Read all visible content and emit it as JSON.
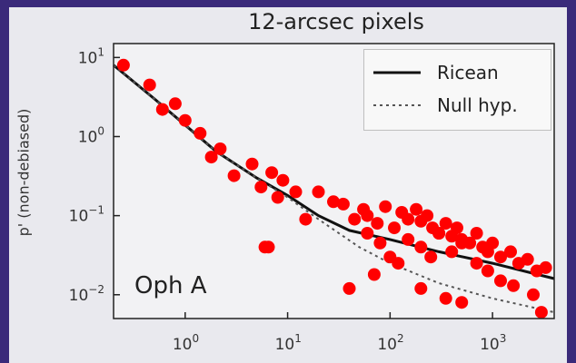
{
  "chart_data": {
    "type": "scatter",
    "title": "12-arcsec pixels",
    "ylabel": "p' (non-debiased)",
    "xscale": "log",
    "yscale": "log",
    "xlim": [
      0.2,
      4000
    ],
    "ylim": [
      0.005,
      15
    ],
    "x_ticks": [
      1,
      10,
      100,
      1000
    ],
    "x_tick_labels": [
      "10^0",
      "10^1",
      "10^2",
      "10^3"
    ],
    "y_ticks": [
      0.01,
      0.1,
      1,
      10
    ],
    "y_tick_labels": [
      "10^-2",
      "10^-1",
      "10^0",
      "10^1"
    ],
    "annotation": "Oph A",
    "legend_position": "top-right",
    "grid": false,
    "colors": {
      "points": "#ff0000",
      "ricean": "#111111",
      "null": "#555555",
      "background": "#3a2a7a"
    },
    "legend": [
      {
        "label": "Ricean",
        "style": "solid"
      },
      {
        "label": "Null hyp.",
        "style": "dotted"
      }
    ],
    "series": [
      {
        "name": "Ricean",
        "kind": "line",
        "style": "solid",
        "x": [
          0.2,
          0.5,
          1,
          2,
          5,
          10,
          20,
          40,
          100,
          300,
          1000,
          4000
        ],
        "y": [
          8,
          3,
          1.4,
          0.65,
          0.3,
          0.18,
          0.1,
          0.065,
          0.05,
          0.035,
          0.025,
          0.016
        ]
      },
      {
        "name": "Null hyp.",
        "kind": "line",
        "style": "dotted",
        "x": [
          0.2,
          0.5,
          1,
          2,
          5,
          10,
          20,
          50,
          100,
          300,
          1000,
          4000
        ],
        "y": [
          8,
          3,
          1.4,
          0.65,
          0.3,
          0.17,
          0.09,
          0.04,
          0.025,
          0.014,
          0.009,
          0.006
        ]
      },
      {
        "kind": "scatter",
        "x": [
          0.25,
          0.45,
          0.6,
          0.8,
          1.0,
          1.4,
          2.2,
          1.8,
          3.0,
          4.5,
          5.5,
          7.0,
          9.0,
          12,
          15,
          6.0,
          8.0,
          20,
          28,
          35,
          45,
          55,
          60,
          75,
          90,
          110,
          130,
          150,
          180,
          200,
          230,
          260,
          300,
          350,
          400,
          450,
          500,
          600,
          700,
          800,
          900,
          1000,
          1200,
          1500,
          1800,
          2200,
          2700,
          3300,
          150,
          200,
          250,
          300,
          400,
          500,
          700,
          900,
          1200,
          1600,
          60,
          80,
          100,
          120,
          6.5,
          40,
          70,
          500,
          2500,
          3000,
          200,
          350
        ],
        "y": [
          8.0,
          4.5,
          2.2,
          2.6,
          1.6,
          1.1,
          0.7,
          0.55,
          0.32,
          0.45,
          0.23,
          0.35,
          0.28,
          0.2,
          0.09,
          0.04,
          0.17,
          0.2,
          0.15,
          0.14,
          0.09,
          0.12,
          0.1,
          0.08,
          0.13,
          0.07,
          0.11,
          0.09,
          0.12,
          0.085,
          0.1,
          0.07,
          0.06,
          0.08,
          0.055,
          0.07,
          0.05,
          0.045,
          0.06,
          0.04,
          0.035,
          0.045,
          0.03,
          0.035,
          0.025,
          0.028,
          0.02,
          0.022,
          0.05,
          0.04,
          0.03,
          0.06,
          0.035,
          0.045,
          0.025,
          0.02,
          0.015,
          0.013,
          0.06,
          0.045,
          0.03,
          0.025,
          0.04,
          0.012,
          0.018,
          0.008,
          0.01,
          0.006,
          0.012,
          0.009
        ]
      }
    ]
  }
}
